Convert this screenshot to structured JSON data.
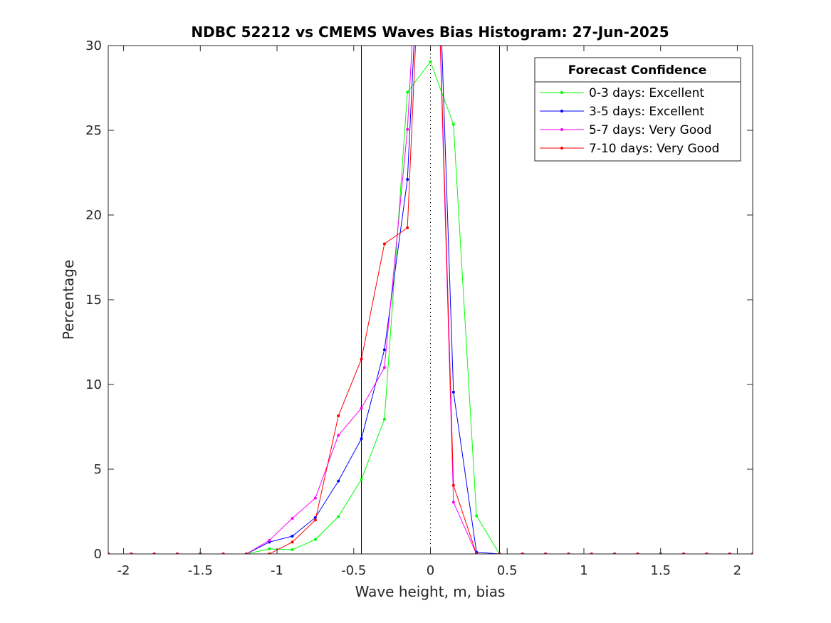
{
  "chart_data": {
    "type": "line",
    "title": "NDBC 52212 vs CMEMS Waves Bias Histogram: 27-Jun-2025",
    "xlabel": "Wave height, m, bias",
    "ylabel": "Percentage",
    "xlim": [
      -2.1,
      2.1
    ],
    "ylim": [
      0,
      30
    ],
    "xticks": [
      -2,
      -1.5,
      -1,
      -0.5,
      0,
      0.5,
      1,
      1.5,
      2
    ],
    "xtick_labels": [
      "-2",
      "-1.5",
      "-1",
      "-0.5",
      "0",
      "0.5",
      "1",
      "1.5",
      "2"
    ],
    "yticks": [
      0,
      5,
      10,
      15,
      20,
      25,
      30
    ],
    "ytick_labels": [
      "0",
      "5",
      "10",
      "15",
      "20",
      "25",
      "30"
    ],
    "grid": false,
    "reference_lines": {
      "solid_x": [
        -0.45,
        0.45
      ],
      "dotted_x": [
        0
      ]
    },
    "legend": {
      "title": "Forecast Confidence",
      "placement": "top-right"
    },
    "x": [
      -2.1,
      -1.95,
      -1.8,
      -1.65,
      -1.5,
      -1.35,
      -1.2,
      -1.05,
      -0.9,
      -0.75,
      -0.6,
      -0.45,
      -0.3,
      -0.15,
      0,
      0.15,
      0.3,
      0.45,
      0.6,
      0.75,
      0.9,
      1.05,
      1.2,
      1.35,
      1.5,
      1.65,
      1.8,
      1.95,
      2.1
    ],
    "series": [
      {
        "name": "0-3 days: Excellent",
        "color": "#00ff00",
        "values": [
          0,
          0,
          0,
          0,
          0,
          0,
          0,
          0.3,
          0.25,
          0.85,
          2.2,
          4.4,
          7.95,
          27.25,
          29.05,
          25.35,
          2.25,
          0,
          0,
          0,
          0,
          0,
          0,
          0,
          0,
          0,
          0,
          0,
          0
        ]
      },
      {
        "name": "3-5 days: Excellent",
        "color": "#0000ff",
        "values": [
          0,
          0,
          0,
          0,
          0,
          0,
          0,
          0.7,
          1.05,
          2.15,
          4.3,
          6.8,
          12.05,
          22.1,
          50,
          9.55,
          0.1,
          0,
          0,
          0,
          0,
          0,
          0,
          0,
          0,
          0,
          0,
          0,
          0
        ]
      },
      {
        "name": "5-7 days: Very Good",
        "color": "#ff00ff",
        "values": [
          0,
          0,
          0,
          0,
          0,
          0,
          0,
          0.8,
          2.1,
          3.3,
          7.0,
          8.6,
          11.0,
          25.05,
          50,
          3.05,
          0,
          0,
          0,
          0,
          0,
          0,
          0,
          0,
          0,
          0,
          0,
          0,
          0
        ]
      },
      {
        "name": "7-10 days: Very Good",
        "color": "#ff0000",
        "values": [
          0,
          0,
          0,
          0,
          0,
          0,
          0,
          0,
          0.7,
          2.0,
          8.15,
          11.5,
          18.3,
          19.25,
          50,
          4.05,
          0,
          0,
          0,
          0,
          0,
          0,
          0,
          0,
          0,
          0,
          0,
          0,
          0
        ]
      }
    ]
  }
}
